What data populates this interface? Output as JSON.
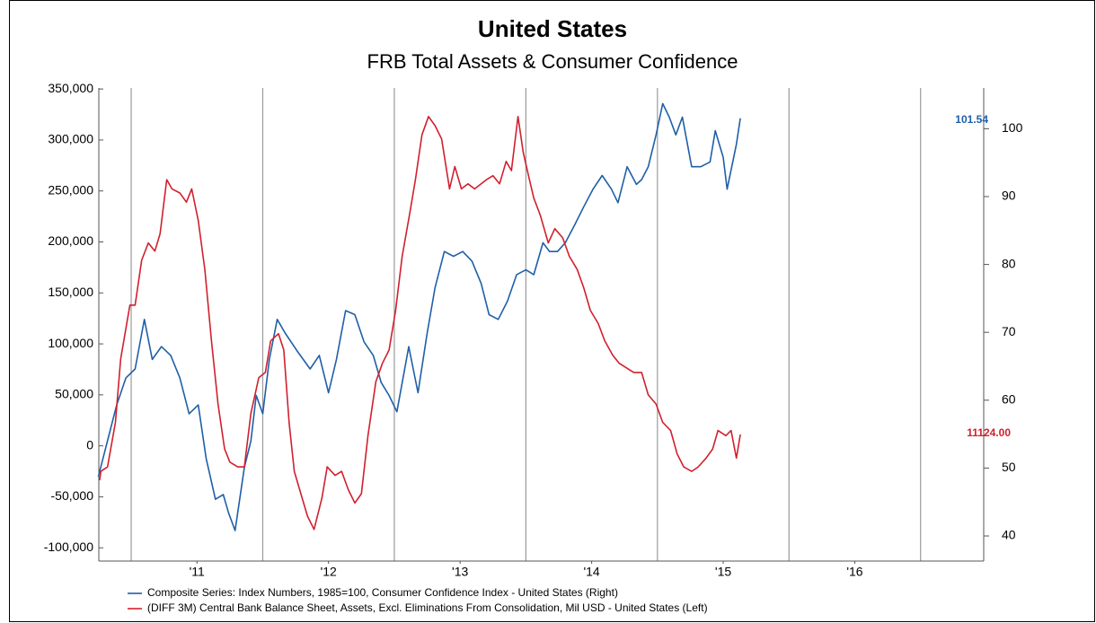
{
  "chart_data": {
    "type": "line",
    "title": "United States",
    "subtitle": "FRB Total Assets & Consumer Confidence",
    "xlim": [
      2010.754,
      2017.48
    ],
    "xticks": [
      {
        "value": 2011.5,
        "label": "'11"
      },
      {
        "value": 2012.5,
        "label": "'12"
      },
      {
        "value": 2013.5,
        "label": "'13"
      },
      {
        "value": 2014.5,
        "label": "'14"
      },
      {
        "value": 2015.5,
        "label": "'15"
      },
      {
        "value": 2016.5,
        "label": "'16"
      }
    ],
    "xgrid": [
      2011,
      2012,
      2013,
      2014,
      2015,
      2016,
      2017
    ],
    "ylim": [
      -113000,
      351000
    ],
    "yticks": [
      {
        "value": -100000,
        "label": "-100,000"
      },
      {
        "value": -50000,
        "label": "-50,000"
      },
      0,
      {
        "value": 50000,
        "label": "50,000"
      },
      {
        "value": 100000,
        "label": "100,000"
      },
      {
        "value": 150000,
        "label": "150,000"
      },
      {
        "value": 200000,
        "label": "200,000"
      },
      {
        "value": 250000,
        "label": "250,000"
      },
      {
        "value": 300000,
        "label": "300,000"
      },
      {
        "value": 350000,
        "label": "350,000"
      }
    ],
    "y2lim": [
      36.3,
      106
    ],
    "y2ticks": [
      40,
      50,
      60,
      70,
      80,
      90,
      100
    ],
    "series": [
      {
        "name": "Composite Series: Index Numbers, 1985=100, Consumer Confidence Index - United States  (Right)",
        "color": "#1f5fa8",
        "axis": "y2",
        "x": [
          2010.75,
          2010.89,
          2010.96,
          2011.03,
          2011.1,
          2011.16,
          2011.23,
          2011.3,
          2011.37,
          2011.44,
          2011.51,
          2011.57,
          2011.64,
          2011.7,
          2011.74,
          2011.79,
          2011.86,
          2011.91,
          2011.95,
          2012.0,
          2012.05,
          2012.11,
          2012.17,
          2012.26,
          2012.36,
          2012.43,
          2012.5,
          2012.56,
          2012.63,
          2012.7,
          2012.77,
          2012.84,
          2012.9,
          2012.96,
          2013.02,
          2013.11,
          2013.18,
          2013.25,
          2013.31,
          2013.38,
          2013.45,
          2013.52,
          2013.59,
          2013.66,
          2013.72,
          2013.79,
          2013.86,
          2013.93,
          2014.0,
          2014.06,
          2014.13,
          2014.18,
          2014.24,
          2014.3,
          2014.37,
          2014.44,
          2014.51,
          2014.58,
          2014.65,
          2014.7,
          2014.77,
          2014.84,
          2014.88,
          2014.93,
          2014.99,
          2015.04,
          2015.09,
          2015.14,
          2015.19,
          2015.26,
          2015.33,
          2015.4,
          2015.44,
          2015.5,
          2015.53,
          2015.6,
          2015.63
        ],
        "values": [
          48.7,
          59.3,
          63.3,
          64.6,
          71.9,
          66.0,
          67.9,
          66.6,
          63.3,
          58.0,
          59.3,
          51.4,
          45.4,
          46.1,
          43.4,
          40.8,
          50.1,
          54.0,
          60.7,
          58.0,
          66.0,
          71.9,
          69.9,
          67.3,
          64.6,
          66.6,
          61.1,
          66.0,
          73.2,
          72.6,
          68.6,
          66.6,
          62.6,
          60.7,
          58.3,
          67.9,
          61.1,
          69.9,
          76.6,
          81.9,
          81.2,
          81.9,
          80.5,
          77.2,
          72.6,
          71.9,
          74.6,
          78.5,
          79.2,
          78.5,
          83.2,
          81.9,
          81.9,
          83.2,
          85.8,
          88.5,
          91.1,
          93.1,
          91.1,
          89.1,
          94.4,
          91.8,
          92.5,
          94.4,
          99.1,
          103.7,
          101.7,
          99.1,
          101.7,
          94.4,
          94.4,
          95.1,
          99.7,
          95.8,
          91.1,
          97.7,
          101.54
        ]
      },
      {
        "name": "(DIFF 3M) Central Bank Balance Sheet, Assets, Excl. Eliminations From Consolidation, Mil USD - United States  (Left)",
        "color": "#d0202e",
        "axis": "y",
        "x": [
          2010.76,
          2010.77,
          2010.82,
          2010.88,
          2010.92,
          2010.99,
          2011.03,
          2011.08,
          2011.13,
          2011.18,
          2011.22,
          2011.27,
          2011.31,
          2011.37,
          2011.42,
          2011.46,
          2011.51,
          2011.56,
          2011.61,
          2011.66,
          2011.71,
          2011.75,
          2011.81,
          2011.86,
          2011.91,
          2011.97,
          2012.02,
          2012.06,
          2012.12,
          2012.16,
          2012.2,
          2012.24,
          2012.29,
          2012.34,
          2012.39,
          2012.45,
          2012.49,
          2012.55,
          2012.6,
          2012.65,
          2012.7,
          2012.75,
          2012.8,
          2012.86,
          2012.91,
          2012.96,
          2013.01,
          2013.06,
          2013.12,
          2013.16,
          2013.21,
          2013.26,
          2013.31,
          2013.36,
          2013.42,
          2013.46,
          2013.51,
          2013.56,
          2013.61,
          2013.66,
          2013.7,
          2013.75,
          2013.8,
          2013.85,
          2013.89,
          2013.94,
          2013.98,
          2014.02,
          2014.06,
          2014.11,
          2014.17,
          2014.22,
          2014.28,
          2014.33,
          2014.39,
          2014.44,
          2014.49,
          2014.55,
          2014.6,
          2014.66,
          2014.71,
          2014.77,
          2014.82,
          2014.88,
          2014.93,
          2014.99,
          2015.04,
          2015.1,
          2015.15,
          2015.2,
          2015.26,
          2015.31,
          2015.37,
          2015.42,
          2015.46,
          2015.52,
          2015.56,
          2015.6,
          2015.63
        ],
        "values": [
          -33800,
          -25000,
          -20600,
          23000,
          85000,
          138000,
          138000,
          182000,
          199000,
          191000,
          208000,
          261000,
          252000,
          248000,
          239000,
          252000,
          221000,
          173000,
          103000,
          41000,
          -3000,
          -16000,
          -20600,
          -20600,
          32000,
          67000,
          72000,
          103000,
          110000,
          94000,
          23000,
          -25000,
          -47000,
          -69000,
          -82000,
          -51000,
          -20600,
          -29000,
          -25000,
          -43000,
          -56000,
          -47000,
          10000,
          63000,
          81000,
          94000,
          133000,
          186000,
          230000,
          261000,
          305000,
          323000,
          314000,
          301000,
          252000,
          274000,
          252000,
          257000,
          252000,
          257000,
          261000,
          265000,
          257000,
          279000,
          270000,
          323000,
          288000,
          265000,
          243000,
          226000,
          199000,
          213000,
          204000,
          186000,
          173000,
          155000,
          133000,
          120000,
          103000,
          89000,
          81000,
          76000,
          72000,
          72000,
          50000,
          41000,
          23000,
          15000,
          -8000,
          -20600,
          -25000,
          -20600,
          -12000,
          -3000,
          15000,
          10000,
          15000,
          -12000,
          11124
        ]
      }
    ],
    "annotations": [
      {
        "text": "101.54",
        "color": "#1f5fa8"
      },
      {
        "text": "11124.00",
        "color": "#d0202e"
      }
    ]
  }
}
